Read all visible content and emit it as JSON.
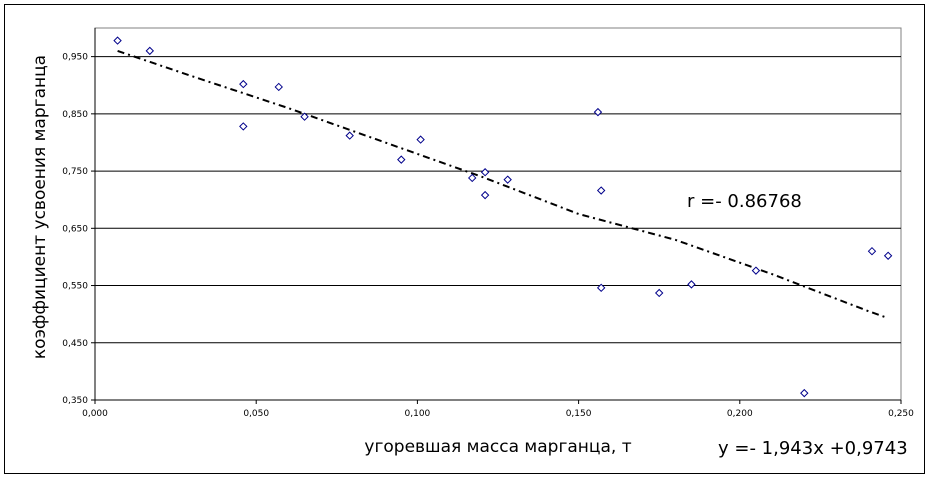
{
  "chart_data": {
    "type": "scatter",
    "xlabel": "угоревшая масса марганца, т",
    "ylabel": "коэффициент усвоения марганца",
    "xlim": [
      0,
      0.25
    ],
    "ylim": [
      0.35,
      1.0
    ],
    "x_ticks": [
      "0,000",
      "0,050",
      "0,100",
      "0,150",
      "0,200",
      "0,250"
    ],
    "x_tick_values": [
      0,
      0.05,
      0.1,
      0.15,
      0.2,
      0.25
    ],
    "y_ticks": [
      "0,350",
      "0,450",
      "0,550",
      "0,650",
      "0,750",
      "0,850",
      "0,950"
    ],
    "y_tick_values": [
      0.35,
      0.45,
      0.55,
      0.65,
      0.75,
      0.85,
      0.95
    ],
    "grid": "horizontal",
    "marker_color": "#00008b",
    "series": [
      {
        "points": [
          [
            0.007,
            0.978
          ],
          [
            0.017,
            0.96
          ],
          [
            0.046,
            0.902
          ],
          [
            0.046,
            0.828
          ],
          [
            0.057,
            0.897
          ],
          [
            0.065,
            0.845
          ],
          [
            0.079,
            0.812
          ],
          [
            0.095,
            0.77
          ],
          [
            0.101,
            0.805
          ],
          [
            0.117,
            0.738
          ],
          [
            0.121,
            0.748
          ],
          [
            0.121,
            0.708
          ],
          [
            0.128,
            0.735
          ],
          [
            0.156,
            0.853
          ],
          [
            0.157,
            0.716
          ],
          [
            0.157,
            0.546
          ],
          [
            0.175,
            0.537
          ],
          [
            0.185,
            0.552
          ],
          [
            0.205,
            0.576
          ],
          [
            0.22,
            0.362
          ],
          [
            0.241,
            0.61
          ],
          [
            0.246,
            0.602
          ]
        ]
      }
    ],
    "trendline": {
      "x": [
        0.007,
        0.03,
        0.06,
        0.09,
        0.12,
        0.15,
        0.18,
        0.21,
        0.24,
        0.246
      ],
      "y": [
        0.96,
        0.916,
        0.86,
        0.8,
        0.74,
        0.675,
        0.63,
        0.57,
        0.505,
        0.493
      ]
    },
    "annotations": {
      "r_text": "r =- 0.86768",
      "equation": "y =- 1,943x +0,9743"
    }
  }
}
